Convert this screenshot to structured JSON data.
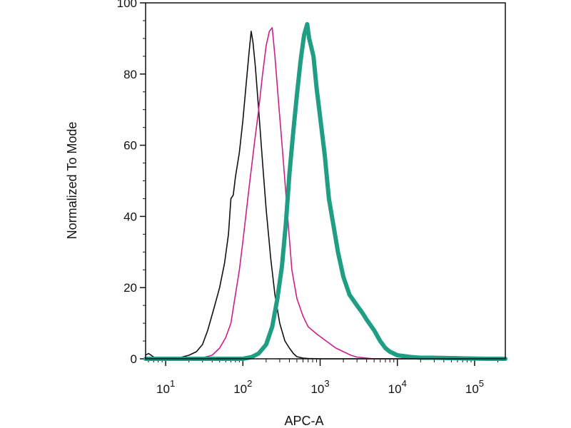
{
  "chart_data": {
    "type": "line",
    "title": "",
    "xlabel": "APC-A",
    "ylabel": "Normalized To Mode",
    "x_scale": "log",
    "xlim": [
      5.5,
      250000
    ],
    "ylim": [
      0,
      100
    ],
    "grid": false,
    "legend": "none",
    "x_ticks": [
      {
        "value": 10,
        "base": "10",
        "exp": "1"
      },
      {
        "value": 100,
        "base": "10",
        "exp": "2"
      },
      {
        "value": 1000,
        "base": "10",
        "exp": "3"
      },
      {
        "value": 10000,
        "base": "10",
        "exp": "4"
      },
      {
        "value": 100000,
        "base": "10",
        "exp": "5"
      }
    ],
    "y_ticks": [
      {
        "value": 0,
        "label": "0"
      },
      {
        "value": 20,
        "label": "20"
      },
      {
        "value": 40,
        "label": "40"
      },
      {
        "value": 60,
        "label": "60"
      },
      {
        "value": 80,
        "label": "80"
      },
      {
        "value": 100,
        "label": "100"
      }
    ],
    "series": [
      {
        "color": "#111111",
        "style": "thin",
        "points": [
          [
            5.5,
            1
          ],
          [
            6,
            1.5
          ],
          [
            7,
            0.5
          ],
          [
            8,
            0.2
          ],
          [
            10,
            0.1
          ],
          [
            15,
            0.3
          ],
          [
            20,
            1
          ],
          [
            25,
            2
          ],
          [
            30,
            4
          ],
          [
            35,
            8
          ],
          [
            42,
            14
          ],
          [
            50,
            20
          ],
          [
            58,
            27
          ],
          [
            65,
            35
          ],
          [
            70,
            45
          ],
          [
            75,
            46
          ],
          [
            80,
            51
          ],
          [
            90,
            58
          ],
          [
            100,
            67
          ],
          [
            110,
            77
          ],
          [
            120,
            86
          ],
          [
            128,
            92
          ],
          [
            135,
            89
          ],
          [
            145,
            82
          ],
          [
            160,
            70
          ],
          [
            180,
            55
          ],
          [
            200,
            42
          ],
          [
            230,
            28
          ],
          [
            260,
            18
          ],
          [
            300,
            10
          ],
          [
            350,
            5
          ],
          [
            400,
            3
          ],
          [
            450,
            1.5
          ],
          [
            500,
            0.6
          ],
          [
            600,
            0.2
          ],
          [
            700,
            0.1
          ],
          [
            1000,
            0
          ],
          [
            3000,
            0
          ],
          [
            250000,
            0
          ]
        ]
      },
      {
        "color": "#cc1f8a",
        "style": "thin",
        "points": [
          [
            5.5,
            0
          ],
          [
            20,
            0
          ],
          [
            30,
            0.3
          ],
          [
            40,
            1
          ],
          [
            50,
            3
          ],
          [
            60,
            6
          ],
          [
            70,
            10
          ],
          [
            80,
            18
          ],
          [
            90,
            25
          ],
          [
            100,
            33
          ],
          [
            120,
            48
          ],
          [
            140,
            60
          ],
          [
            160,
            70
          ],
          [
            180,
            80
          ],
          [
            200,
            88
          ],
          [
            220,
            92
          ],
          [
            240,
            93
          ],
          [
            260,
            85
          ],
          [
            290,
            72
          ],
          [
            330,
            57
          ],
          [
            380,
            40
          ],
          [
            430,
            25
          ],
          [
            500,
            17
          ],
          [
            600,
            12
          ],
          [
            700,
            9
          ],
          [
            900,
            7
          ],
          [
            1200,
            5
          ],
          [
            1600,
            3
          ],
          [
            2000,
            2
          ],
          [
            2500,
            1
          ],
          [
            3000,
            0.5
          ],
          [
            4000,
            0.2
          ],
          [
            5000,
            0
          ],
          [
            250000,
            0
          ]
        ]
      },
      {
        "color": "#1f9e84",
        "style": "thick",
        "points": [
          [
            5.5,
            0
          ],
          [
            100,
            0
          ],
          [
            130,
            0.5
          ],
          [
            160,
            1.5
          ],
          [
            200,
            4
          ],
          [
            240,
            9
          ],
          [
            280,
            17
          ],
          [
            320,
            26
          ],
          [
            360,
            38
          ],
          [
            400,
            52
          ],
          [
            450,
            64
          ],
          [
            500,
            74
          ],
          [
            560,
            84
          ],
          [
            620,
            91
          ],
          [
            680,
            94
          ],
          [
            720,
            90
          ],
          [
            760,
            88
          ],
          [
            820,
            85
          ],
          [
            900,
            76
          ],
          [
            1000,
            68
          ],
          [
            1150,
            57
          ],
          [
            1300,
            45
          ],
          [
            1500,
            37
          ],
          [
            1700,
            30
          ],
          [
            2000,
            23
          ],
          [
            2400,
            18
          ],
          [
            3000,
            15
          ],
          [
            3500,
            13
          ],
          [
            4000,
            11
          ],
          [
            5000,
            8
          ],
          [
            6000,
            5
          ],
          [
            7000,
            3
          ],
          [
            8000,
            2
          ],
          [
            10000,
            1
          ],
          [
            15000,
            0.5
          ],
          [
            20000,
            0.3
          ],
          [
            30000,
            0.3
          ],
          [
            50000,
            0.2
          ],
          [
            80000,
            0.1
          ],
          [
            150000,
            0
          ],
          [
            250000,
            0
          ]
        ]
      }
    ]
  }
}
